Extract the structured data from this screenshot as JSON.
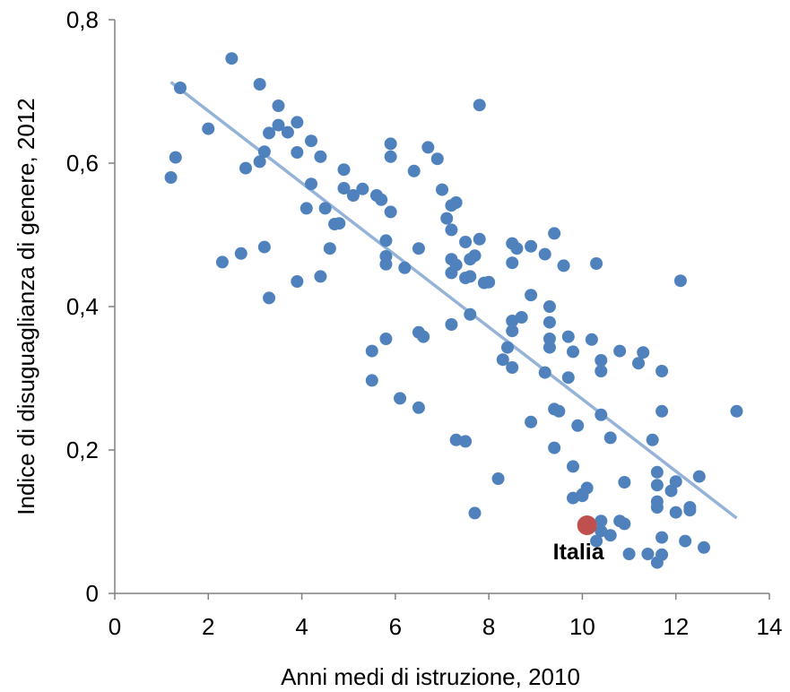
{
  "chart_data": {
    "type": "scatter",
    "title": "",
    "xlabel": "Anni medi di istruzione, 2010",
    "ylabel": "Indice di disuguaglianza di genere, 2012",
    "xlim": [
      0,
      14
    ],
    "ylim": [
      0,
      0.8
    ],
    "x_ticks": [
      0,
      2,
      4,
      6,
      8,
      10,
      12,
      14
    ],
    "x_tick_labels": [
      "0",
      "2",
      "4",
      "6",
      "8",
      "10",
      "12",
      "14"
    ],
    "y_ticks": [
      0,
      0.2,
      0.4,
      0.6,
      0.8
    ],
    "y_tick_labels": [
      "0",
      "0,2",
      "0,4",
      "0,6",
      "0,8"
    ],
    "grid": false,
    "legend": "none",
    "colors": {
      "points": "#4f81bd",
      "trendline": "#95b3d7",
      "highlight": "#c0504d"
    },
    "series": [
      {
        "points": [
          [
            1.2,
            0.58
          ],
          [
            1.3,
            0.608
          ],
          [
            1.4,
            0.705
          ],
          [
            2.0,
            0.648
          ],
          [
            2.3,
            0.462
          ],
          [
            2.5,
            0.746
          ],
          [
            2.7,
            0.474
          ],
          [
            2.8,
            0.593
          ],
          [
            3.1,
            0.71
          ],
          [
            3.1,
            0.602
          ],
          [
            3.2,
            0.616
          ],
          [
            3.2,
            0.483
          ],
          [
            3.3,
            0.642
          ],
          [
            3.3,
            0.412
          ],
          [
            3.5,
            0.68
          ],
          [
            3.5,
            0.653
          ],
          [
            3.7,
            0.643
          ],
          [
            3.9,
            0.657
          ],
          [
            3.9,
            0.615
          ],
          [
            3.9,
            0.435
          ],
          [
            4.1,
            0.537
          ],
          [
            4.2,
            0.631
          ],
          [
            4.2,
            0.571
          ],
          [
            4.4,
            0.609
          ],
          [
            4.4,
            0.442
          ],
          [
            4.5,
            0.537
          ],
          [
            4.6,
            0.481
          ],
          [
            4.7,
            0.515
          ],
          [
            4.8,
            0.516
          ],
          [
            4.9,
            0.591
          ],
          [
            4.9,
            0.565
          ],
          [
            5.1,
            0.555
          ],
          [
            5.3,
            0.564
          ],
          [
            5.5,
            0.338
          ],
          [
            5.5,
            0.297
          ],
          [
            5.6,
            0.555
          ],
          [
            5.7,
            0.549
          ],
          [
            5.8,
            0.492
          ],
          [
            5.8,
            0.47
          ],
          [
            5.8,
            0.459
          ],
          [
            5.8,
            0.355
          ],
          [
            5.9,
            0.627
          ],
          [
            5.9,
            0.609
          ],
          [
            5.9,
            0.532
          ],
          [
            6.1,
            0.272
          ],
          [
            6.2,
            0.454
          ],
          [
            6.4,
            0.589
          ],
          [
            6.5,
            0.481
          ],
          [
            6.5,
            0.364
          ],
          [
            6.5,
            0.259
          ],
          [
            6.6,
            0.358
          ],
          [
            6.7,
            0.622
          ],
          [
            6.9,
            0.606
          ],
          [
            7.0,
            0.563
          ],
          [
            7.1,
            0.523
          ],
          [
            7.2,
            0.541
          ],
          [
            7.2,
            0.507
          ],
          [
            7.2,
            0.466
          ],
          [
            7.2,
            0.447
          ],
          [
            7.2,
            0.375
          ],
          [
            7.3,
            0.545
          ],
          [
            7.3,
            0.458
          ],
          [
            7.3,
            0.214
          ],
          [
            7.5,
            0.49
          ],
          [
            7.5,
            0.44
          ],
          [
            7.5,
            0.212
          ],
          [
            7.6,
            0.442
          ],
          [
            7.6,
            0.466
          ],
          [
            7.6,
            0.389
          ],
          [
            7.7,
            0.471
          ],
          [
            7.7,
            0.112
          ],
          [
            7.8,
            0.681
          ],
          [
            7.8,
            0.494
          ],
          [
            7.9,
            0.433
          ],
          [
            8.0,
            0.434
          ],
          [
            8.2,
            0.16
          ],
          [
            8.3,
            0.326
          ],
          [
            8.4,
            0.343
          ],
          [
            8.5,
            0.488
          ],
          [
            8.5,
            0.461
          ],
          [
            8.5,
            0.38
          ],
          [
            8.5,
            0.366
          ],
          [
            8.5,
            0.315
          ],
          [
            8.6,
            0.481
          ],
          [
            8.7,
            0.385
          ],
          [
            8.9,
            0.484
          ],
          [
            8.9,
            0.416
          ],
          [
            8.9,
            0.239
          ],
          [
            9.2,
            0.473
          ],
          [
            9.2,
            0.308
          ],
          [
            9.3,
            0.4
          ],
          [
            9.3,
            0.378
          ],
          [
            9.3,
            0.355
          ],
          [
            9.3,
            0.343
          ],
          [
            9.4,
            0.502
          ],
          [
            9.4,
            0.257
          ],
          [
            9.4,
            0.203
          ],
          [
            9.5,
            0.254
          ],
          [
            9.6,
            0.457
          ],
          [
            9.7,
            0.358
          ],
          [
            9.7,
            0.301
          ],
          [
            9.8,
            0.337
          ],
          [
            9.8,
            0.177
          ],
          [
            9.8,
            0.133
          ],
          [
            9.9,
            0.234
          ],
          [
            10.0,
            0.136
          ],
          [
            10.0,
            0.138
          ],
          [
            10.1,
            0.147
          ],
          [
            10.2,
            0.354
          ],
          [
            10.3,
            0.46
          ],
          [
            10.3,
            0.073
          ],
          [
            10.4,
            0.325
          ],
          [
            10.4,
            0.31
          ],
          [
            10.4,
            0.249
          ],
          [
            10.4,
            0.101
          ],
          [
            10.4,
            0.087
          ],
          [
            10.6,
            0.217
          ],
          [
            10.6,
            0.081
          ],
          [
            10.8,
            0.338
          ],
          [
            10.8,
            0.101
          ],
          [
            10.9,
            0.155
          ],
          [
            10.9,
            0.097
          ],
          [
            11.0,
            0.055
          ],
          [
            11.2,
            0.321
          ],
          [
            11.3,
            0.336
          ],
          [
            11.4,
            0.055
          ],
          [
            11.5,
            0.214
          ],
          [
            11.6,
            0.169
          ],
          [
            11.6,
            0.151
          ],
          [
            11.6,
            0.128
          ],
          [
            11.6,
            0.12
          ],
          [
            11.6,
            0.043
          ],
          [
            11.7,
            0.31
          ],
          [
            11.7,
            0.254
          ],
          [
            11.7,
            0.078
          ],
          [
            11.7,
            0.054
          ],
          [
            11.9,
            0.143
          ],
          [
            12.0,
            0.156
          ],
          [
            12.0,
            0.113
          ],
          [
            12.1,
            0.436
          ],
          [
            12.2,
            0.073
          ],
          [
            12.3,
            0.12
          ],
          [
            12.3,
            0.116
          ],
          [
            12.5,
            0.163
          ],
          [
            12.6,
            0.064
          ],
          [
            13.3,
            0.254
          ]
        ]
      }
    ],
    "highlight": {
      "label": "Italia",
      "x": 10.1,
      "y": 0.095
    },
    "trendline": {
      "x": [
        1.2,
        13.3
      ],
      "y": [
        0.713,
        0.105
      ]
    }
  }
}
